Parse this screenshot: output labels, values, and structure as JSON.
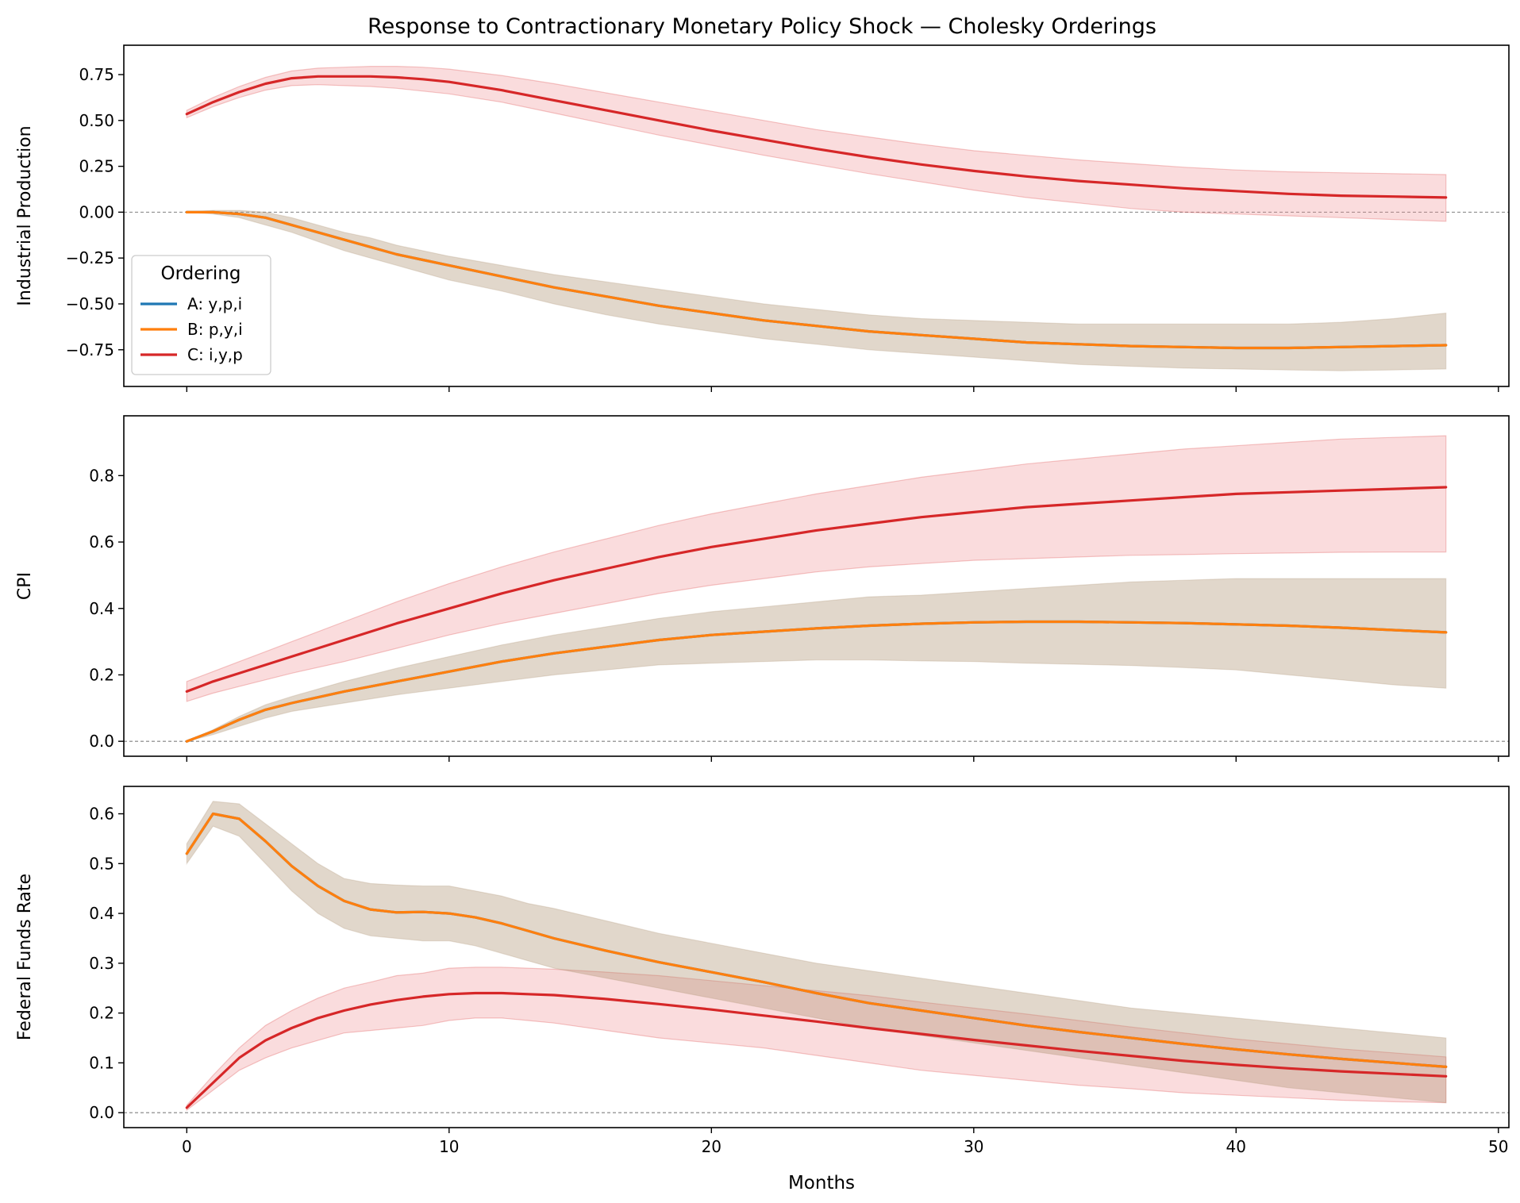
{
  "figure": {
    "title": "Response to Contractionary Monetary Policy Shock — Cholesky Orderings",
    "xlabel": "Months",
    "legend_title": "Ordering",
    "legend": [
      {
        "key": "A",
        "label": "A: y,p,i",
        "color": "#1f77b4"
      },
      {
        "key": "B",
        "label": "B: p,y,i",
        "color": "#ff7f0e"
      },
      {
        "key": "C",
        "label": "C: i,y,p",
        "color": "#d62728"
      }
    ],
    "colors": {
      "A": "#1f77b4",
      "B": "#ff7f0e",
      "C": "#d62728",
      "band_AB": "#ad8f6f",
      "band_C": "#ee8a8f",
      "zero_line": "#808080"
    }
  },
  "chart_data": [
    {
      "type": "line",
      "panel": "industrial-production",
      "ylabel": "Industrial Production",
      "xlim": [
        -2.4,
        50.4
      ],
      "ylim": [
        -0.95,
        0.91
      ],
      "xticks": [
        0,
        10,
        20,
        30,
        40,
        50
      ],
      "yticks": [
        -0.75,
        -0.5,
        -0.25,
        0.0,
        0.25,
        0.5,
        0.75
      ],
      "ytick_labels": [
        "−0.75",
        "−0.50",
        "−0.25",
        "0.00",
        "0.25",
        "0.50",
        "0.75"
      ],
      "show_x_tick_labels": false,
      "zero_line": true,
      "legend_location": "lower left",
      "series": [
        {
          "key": "AB",
          "x": [
            0,
            1,
            2,
            3,
            4,
            5,
            6,
            7,
            8,
            9,
            10,
            12,
            14,
            16,
            18,
            20,
            22,
            24,
            26,
            28,
            30,
            32,
            34,
            36,
            38,
            40,
            42,
            44,
            46,
            48
          ],
          "values": [
            0.0,
            0.0,
            -0.01,
            -0.03,
            -0.07,
            -0.11,
            -0.15,
            -0.19,
            -0.23,
            -0.26,
            -0.29,
            -0.35,
            -0.41,
            -0.46,
            -0.51,
            -0.55,
            -0.59,
            -0.62,
            -0.65,
            -0.67,
            -0.69,
            -0.71,
            -0.72,
            -0.73,
            -0.735,
            -0.74,
            -0.74,
            -0.735,
            -0.73,
            -0.725
          ],
          "lower": [
            0.0,
            -0.01,
            -0.03,
            -0.07,
            -0.11,
            -0.16,
            -0.21,
            -0.25,
            -0.29,
            -0.33,
            -0.37,
            -0.43,
            -0.5,
            -0.56,
            -0.61,
            -0.65,
            -0.69,
            -0.72,
            -0.75,
            -0.77,
            -0.79,
            -0.81,
            -0.83,
            -0.84,
            -0.85,
            -0.855,
            -0.86,
            -0.865,
            -0.86,
            -0.855
          ],
          "upper": [
            0.0,
            0.01,
            0.01,
            0.0,
            -0.03,
            -0.07,
            -0.11,
            -0.14,
            -0.18,
            -0.21,
            -0.24,
            -0.29,
            -0.34,
            -0.38,
            -0.42,
            -0.46,
            -0.5,
            -0.53,
            -0.56,
            -0.58,
            -0.59,
            -0.6,
            -0.61,
            -0.61,
            -0.61,
            -0.61,
            -0.61,
            -0.6,
            -0.58,
            -0.55
          ]
        },
        {
          "key": "C",
          "x": [
            0,
            1,
            2,
            3,
            4,
            5,
            6,
            7,
            8,
            9,
            10,
            12,
            14,
            16,
            18,
            20,
            22,
            24,
            26,
            28,
            30,
            32,
            34,
            36,
            38,
            40,
            42,
            44,
            46,
            48
          ],
          "values": [
            0.535,
            0.6,
            0.655,
            0.7,
            0.73,
            0.74,
            0.74,
            0.74,
            0.735,
            0.725,
            0.71,
            0.665,
            0.61,
            0.555,
            0.5,
            0.445,
            0.395,
            0.345,
            0.3,
            0.26,
            0.225,
            0.195,
            0.17,
            0.15,
            0.13,
            0.115,
            0.1,
            0.09,
            0.085,
            0.08
          ],
          "lower": [
            0.515,
            0.575,
            0.625,
            0.665,
            0.69,
            0.695,
            0.69,
            0.685,
            0.675,
            0.66,
            0.645,
            0.6,
            0.54,
            0.48,
            0.42,
            0.365,
            0.31,
            0.26,
            0.21,
            0.165,
            0.12,
            0.08,
            0.05,
            0.02,
            0.0,
            -0.01,
            -0.02,
            -0.03,
            -0.04,
            -0.05
          ],
          "upper": [
            0.555,
            0.625,
            0.685,
            0.735,
            0.77,
            0.785,
            0.79,
            0.795,
            0.795,
            0.79,
            0.78,
            0.745,
            0.7,
            0.65,
            0.6,
            0.55,
            0.5,
            0.45,
            0.41,
            0.37,
            0.335,
            0.31,
            0.285,
            0.265,
            0.245,
            0.23,
            0.22,
            0.215,
            0.21,
            0.205
          ]
        }
      ]
    },
    {
      "type": "line",
      "panel": "cpi",
      "ylabel": "CPI",
      "xlim": [
        -2.4,
        50.4
      ],
      "ylim": [
        -0.045,
        0.98
      ],
      "xticks": [
        0,
        10,
        20,
        30,
        40,
        50
      ],
      "yticks": [
        0.0,
        0.2,
        0.4,
        0.6,
        0.8
      ],
      "ytick_labels": [
        "0.0",
        "0.2",
        "0.4",
        "0.6",
        "0.8"
      ],
      "show_x_tick_labels": false,
      "zero_line": true,
      "series": [
        {
          "key": "AB",
          "x": [
            0,
            1,
            2,
            3,
            4,
            6,
            8,
            10,
            12,
            14,
            16,
            18,
            20,
            22,
            24,
            26,
            28,
            30,
            32,
            34,
            36,
            38,
            40,
            42,
            44,
            46,
            48
          ],
          "values": [
            0.0,
            0.03,
            0.065,
            0.095,
            0.115,
            0.15,
            0.18,
            0.21,
            0.24,
            0.265,
            0.285,
            0.305,
            0.32,
            0.33,
            0.34,
            0.348,
            0.354,
            0.358,
            0.36,
            0.36,
            0.358,
            0.356,
            0.352,
            0.348,
            0.342,
            0.335,
            0.328
          ],
          "lower": [
            0.0,
            0.02,
            0.045,
            0.07,
            0.09,
            0.115,
            0.14,
            0.16,
            0.18,
            0.2,
            0.215,
            0.23,
            0.235,
            0.24,
            0.245,
            0.245,
            0.242,
            0.24,
            0.235,
            0.232,
            0.228,
            0.222,
            0.215,
            0.2,
            0.185,
            0.17,
            0.16
          ],
          "upper": [
            0.0,
            0.035,
            0.075,
            0.11,
            0.135,
            0.18,
            0.22,
            0.255,
            0.29,
            0.32,
            0.345,
            0.37,
            0.39,
            0.405,
            0.42,
            0.435,
            0.44,
            0.45,
            0.46,
            0.47,
            0.48,
            0.485,
            0.49,
            0.49,
            0.49,
            0.49,
            0.49
          ]
        },
        {
          "key": "C",
          "x": [
            0,
            1,
            2,
            3,
            4,
            6,
            8,
            10,
            12,
            14,
            16,
            18,
            20,
            22,
            24,
            26,
            28,
            30,
            32,
            34,
            36,
            38,
            40,
            42,
            44,
            46,
            48
          ],
          "values": [
            0.15,
            0.18,
            0.205,
            0.23,
            0.255,
            0.305,
            0.355,
            0.4,
            0.445,
            0.485,
            0.52,
            0.555,
            0.585,
            0.61,
            0.635,
            0.655,
            0.675,
            0.69,
            0.705,
            0.715,
            0.725,
            0.735,
            0.745,
            0.75,
            0.755,
            0.76,
            0.765
          ],
          "lower": [
            0.12,
            0.145,
            0.165,
            0.185,
            0.205,
            0.24,
            0.28,
            0.32,
            0.355,
            0.385,
            0.415,
            0.445,
            0.47,
            0.49,
            0.51,
            0.525,
            0.535,
            0.545,
            0.55,
            0.555,
            0.56,
            0.562,
            0.565,
            0.567,
            0.569,
            0.57,
            0.57
          ],
          "upper": [
            0.18,
            0.21,
            0.24,
            0.27,
            0.3,
            0.36,
            0.42,
            0.475,
            0.525,
            0.57,
            0.61,
            0.65,
            0.685,
            0.715,
            0.745,
            0.77,
            0.795,
            0.815,
            0.835,
            0.85,
            0.865,
            0.88,
            0.89,
            0.9,
            0.91,
            0.915,
            0.92
          ]
        }
      ]
    },
    {
      "type": "line",
      "panel": "federal-funds-rate",
      "ylabel": "Federal Funds Rate",
      "xlim": [
        -2.4,
        50.4
      ],
      "ylim": [
        -0.03,
        0.655
      ],
      "xticks": [
        0,
        10,
        20,
        30,
        40,
        50
      ],
      "yticks": [
        0.0,
        0.1,
        0.2,
        0.3,
        0.4,
        0.5,
        0.6
      ],
      "ytick_labels": [
        "0.0",
        "0.1",
        "0.2",
        "0.3",
        "0.4",
        "0.5",
        "0.6"
      ],
      "show_x_tick_labels": true,
      "zero_line": true,
      "series": [
        {
          "key": "AB",
          "x": [
            0,
            1,
            2,
            3,
            4,
            5,
            6,
            7,
            8,
            9,
            10,
            11,
            12,
            13,
            14,
            16,
            18,
            20,
            22,
            24,
            26,
            28,
            30,
            32,
            34,
            36,
            38,
            40,
            42,
            44,
            46,
            48
          ],
          "values": [
            0.52,
            0.6,
            0.59,
            0.545,
            0.495,
            0.455,
            0.425,
            0.408,
            0.402,
            0.403,
            0.4,
            0.392,
            0.38,
            0.365,
            0.35,
            0.325,
            0.302,
            0.282,
            0.262,
            0.24,
            0.22,
            0.205,
            0.19,
            0.175,
            0.162,
            0.15,
            0.138,
            0.127,
            0.117,
            0.108,
            0.1,
            0.092
          ],
          "lower": [
            0.5,
            0.575,
            0.555,
            0.5,
            0.445,
            0.4,
            0.37,
            0.355,
            0.35,
            0.345,
            0.345,
            0.335,
            0.32,
            0.305,
            0.29,
            0.27,
            0.25,
            0.23,
            0.21,
            0.19,
            0.17,
            0.155,
            0.14,
            0.125,
            0.11,
            0.095,
            0.08,
            0.065,
            0.05,
            0.04,
            0.03,
            0.02
          ],
          "upper": [
            0.54,
            0.625,
            0.62,
            0.58,
            0.54,
            0.5,
            0.47,
            0.46,
            0.457,
            0.455,
            0.455,
            0.445,
            0.435,
            0.42,
            0.41,
            0.385,
            0.36,
            0.34,
            0.32,
            0.3,
            0.285,
            0.27,
            0.255,
            0.24,
            0.225,
            0.21,
            0.2,
            0.19,
            0.18,
            0.17,
            0.16,
            0.15
          ]
        },
        {
          "key": "C",
          "x": [
            0,
            1,
            2,
            3,
            4,
            5,
            6,
            7,
            8,
            9,
            10,
            11,
            12,
            13,
            14,
            16,
            18,
            20,
            22,
            24,
            26,
            28,
            30,
            32,
            34,
            36,
            38,
            40,
            42,
            44,
            46,
            48
          ],
          "values": [
            0.01,
            0.06,
            0.11,
            0.145,
            0.17,
            0.19,
            0.205,
            0.217,
            0.226,
            0.233,
            0.238,
            0.24,
            0.24,
            0.238,
            0.236,
            0.228,
            0.218,
            0.207,
            0.195,
            0.183,
            0.17,
            0.158,
            0.146,
            0.135,
            0.124,
            0.114,
            0.104,
            0.096,
            0.089,
            0.083,
            0.078,
            0.073
          ],
          "lower": [
            0.005,
            0.045,
            0.085,
            0.11,
            0.13,
            0.145,
            0.16,
            0.165,
            0.17,
            0.175,
            0.185,
            0.19,
            0.19,
            0.185,
            0.18,
            0.165,
            0.15,
            0.14,
            0.13,
            0.115,
            0.1,
            0.085,
            0.075,
            0.065,
            0.055,
            0.048,
            0.04,
            0.035,
            0.03,
            0.025,
            0.022,
            0.02
          ],
          "upper": [
            0.015,
            0.075,
            0.13,
            0.175,
            0.205,
            0.23,
            0.25,
            0.262,
            0.275,
            0.28,
            0.29,
            0.292,
            0.292,
            0.29,
            0.288,
            0.282,
            0.275,
            0.265,
            0.255,
            0.245,
            0.235,
            0.222,
            0.21,
            0.198,
            0.185,
            0.172,
            0.16,
            0.148,
            0.138,
            0.128,
            0.12,
            0.112
          ]
        }
      ]
    }
  ]
}
